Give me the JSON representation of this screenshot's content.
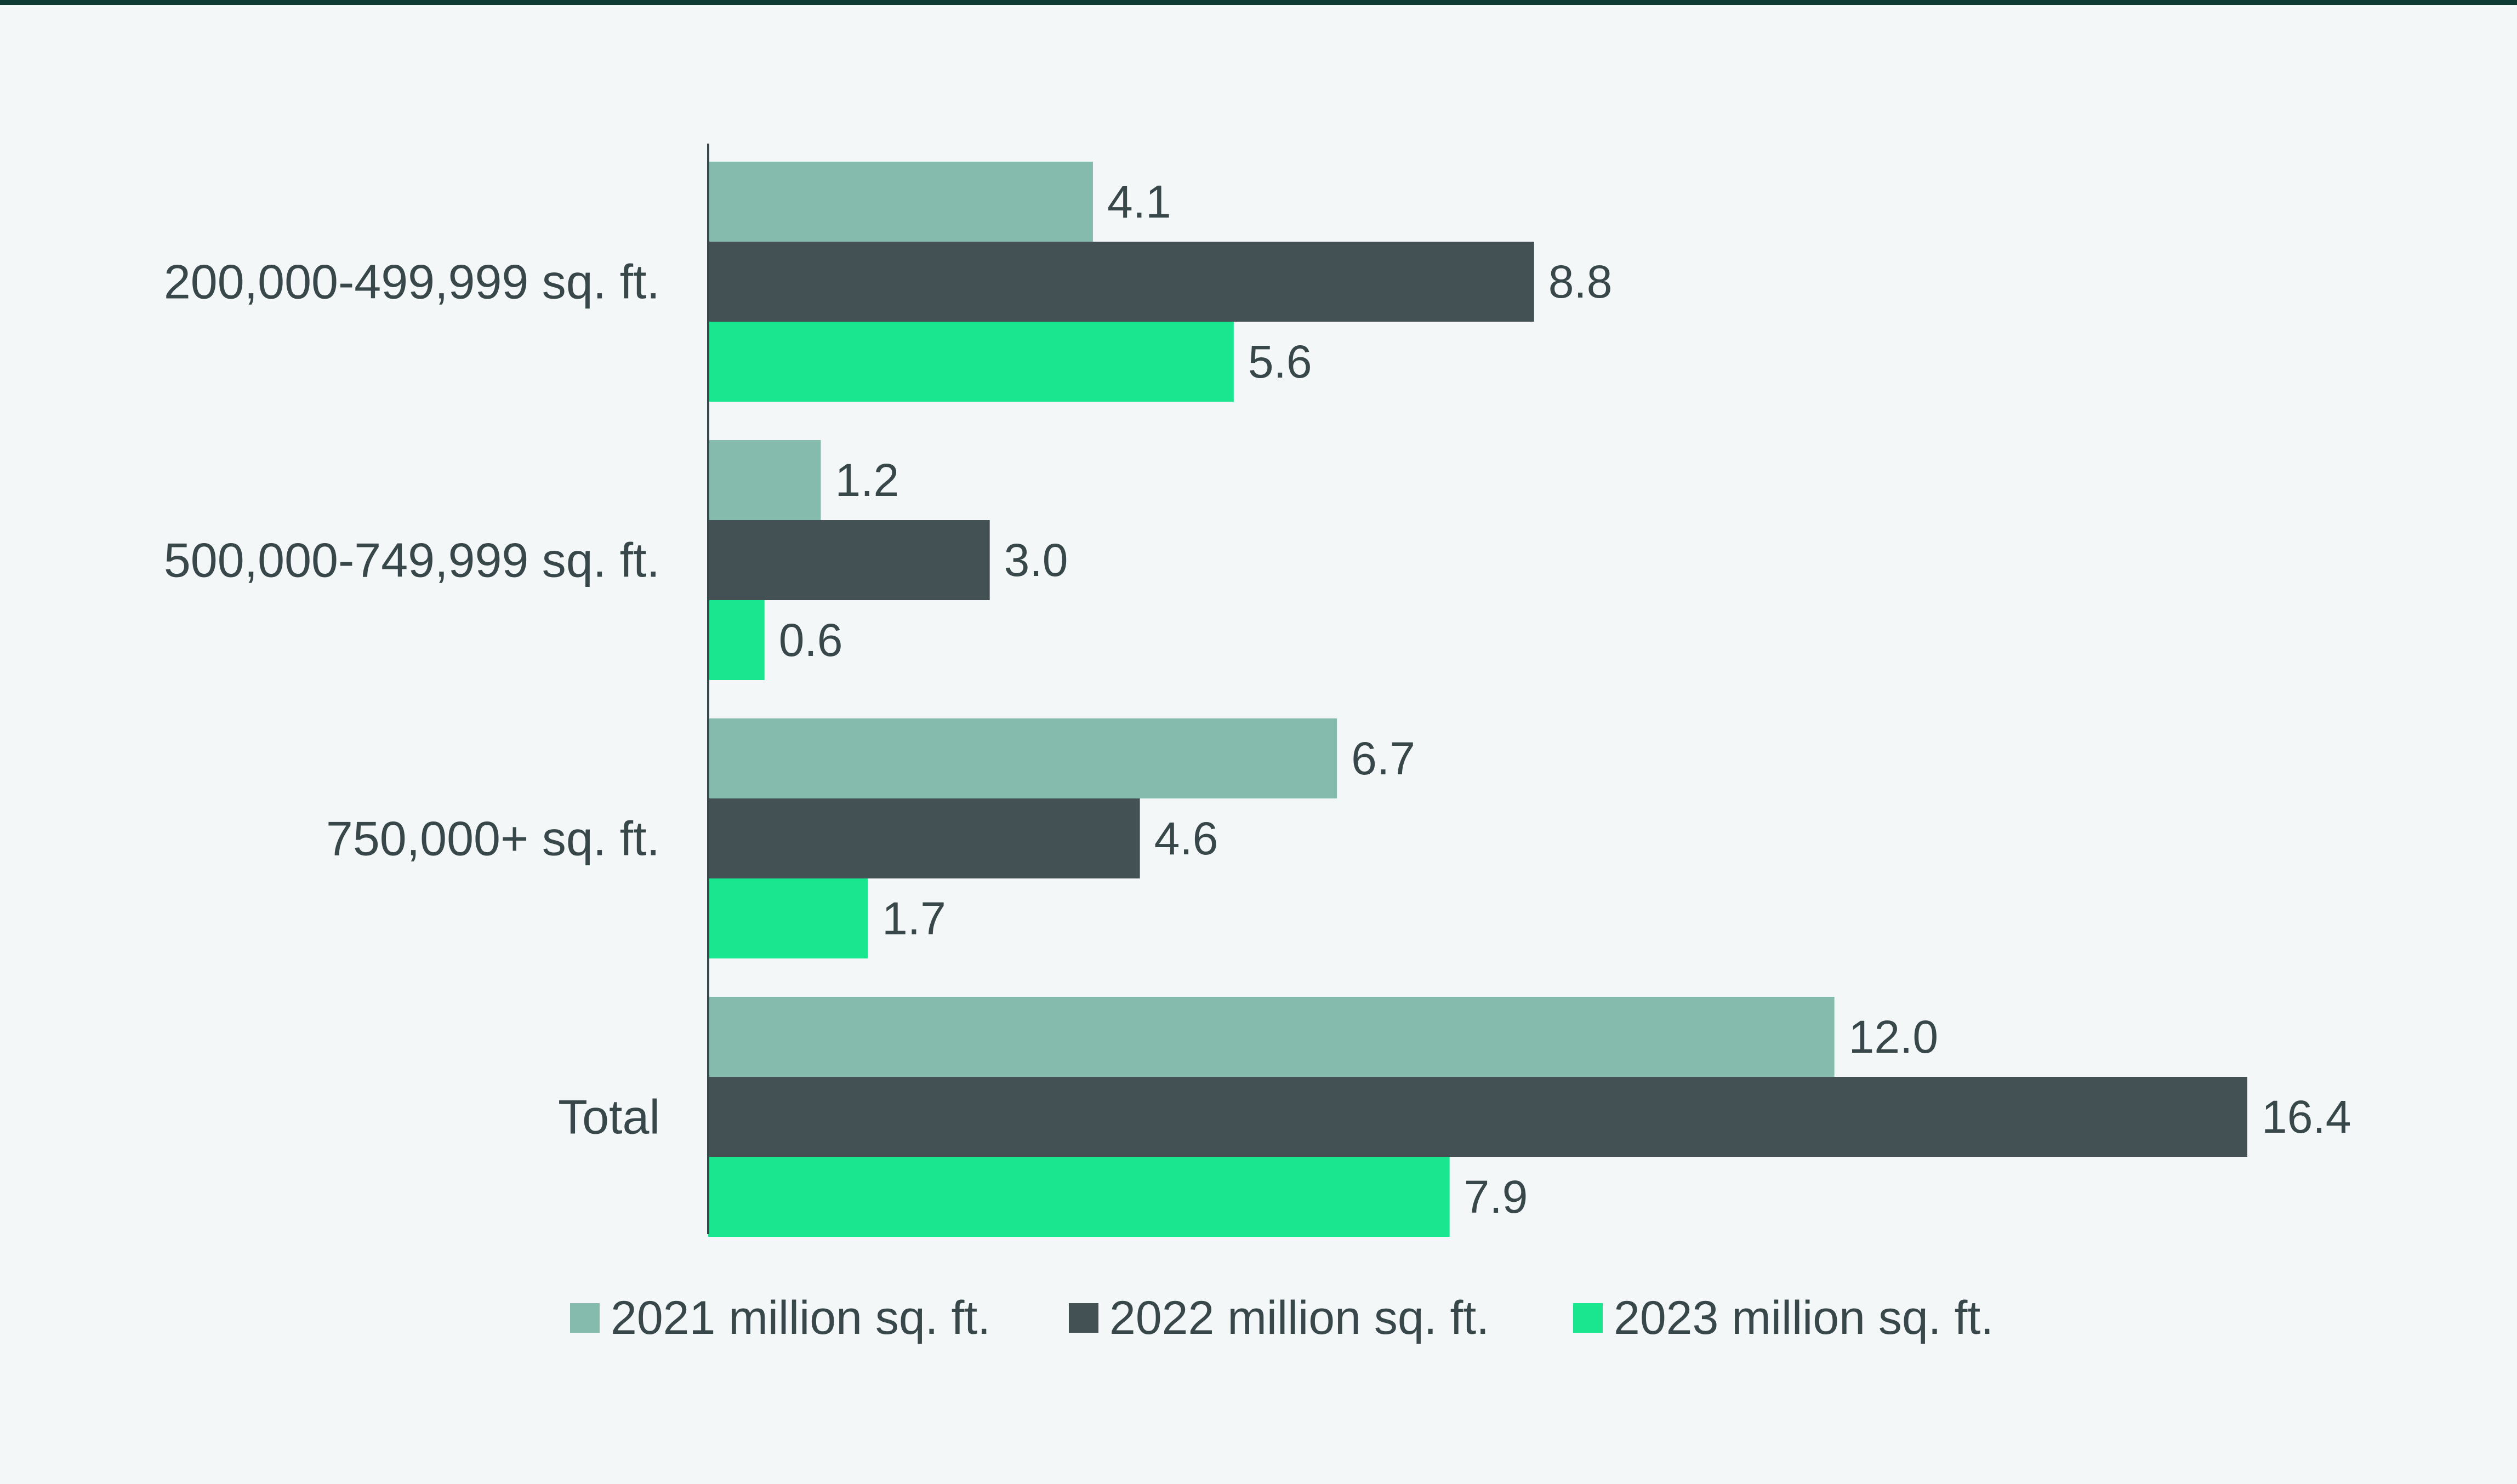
{
  "chart_data": {
    "type": "bar",
    "orientation": "horizontal",
    "title": "",
    "xlabel": "",
    "ylabel": "",
    "xlim": [
      0,
      16.4
    ],
    "grid": false,
    "legend_position": "bottom",
    "categories": [
      "200,000-499,999 sq. ft.",
      "500,000-749,999 sq. ft.",
      "750,000+ sq. ft.",
      "Total"
    ],
    "series": [
      {
        "name": "2021 million sq. ft.",
        "color": "#85bbad",
        "values": [
          4.1,
          1.2,
          6.7,
          12.0
        ],
        "labels": [
          "4.1",
          "1.2",
          "6.7",
          "12.0"
        ]
      },
      {
        "name": "2022 million sq. ft.",
        "color": "#435154",
        "values": [
          8.8,
          3.0,
          4.6,
          16.4
        ],
        "labels": [
          "8.8",
          "3.0",
          "4.6",
          "16.4"
        ]
      },
      {
        "name": "2023 million sq. ft.",
        "color": "#19e68e",
        "values": [
          5.6,
          0.6,
          1.7,
          7.9
        ],
        "labels": [
          "5.6",
          "0.6",
          "1.7",
          "7.9"
        ]
      }
    ]
  },
  "colors": {
    "background": "#f3f7f7",
    "top_rule": "#0f3b35",
    "axis": "#38474a",
    "text": "#38474a"
  }
}
